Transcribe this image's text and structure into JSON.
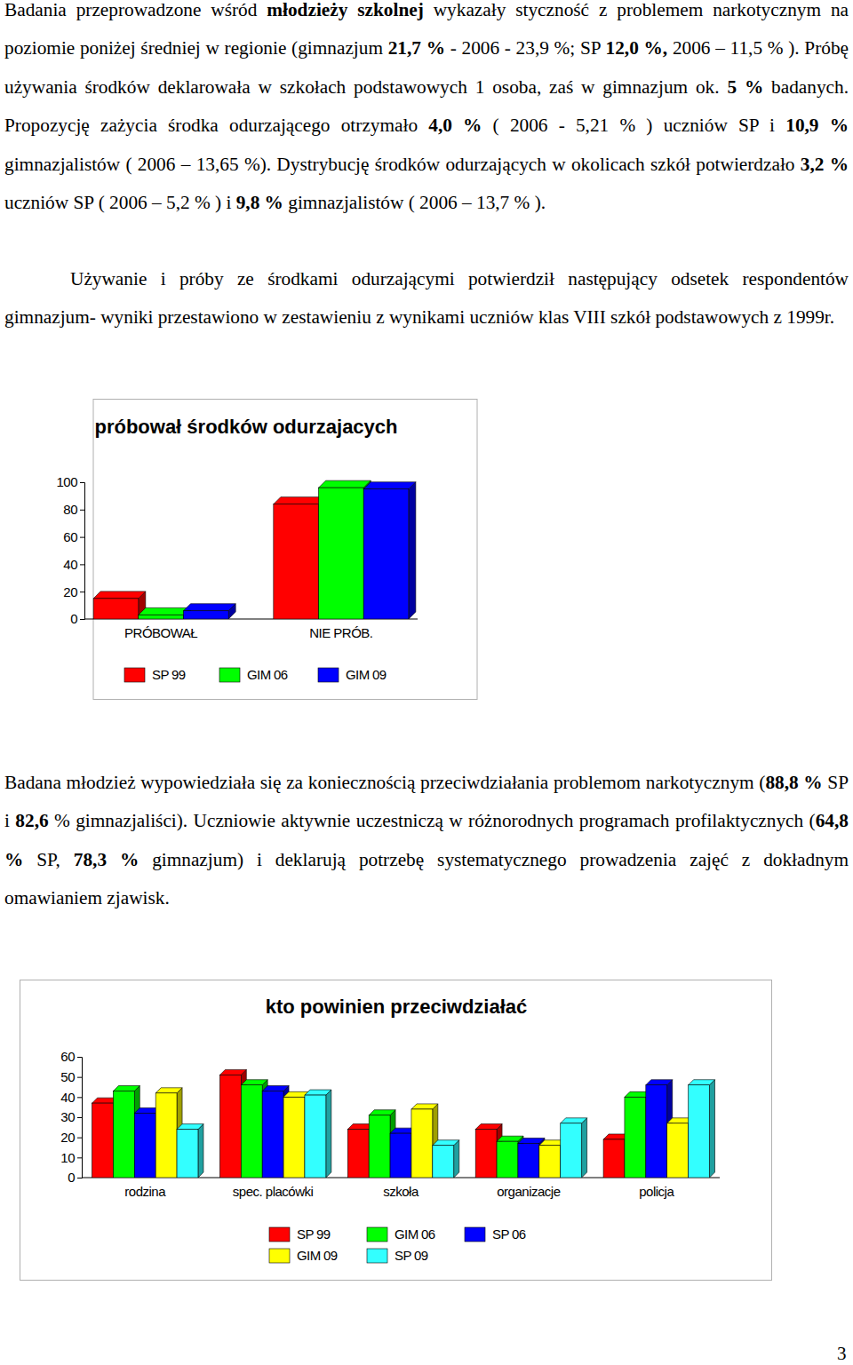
{
  "document": {
    "paragraphs": [
      {
        "runs": [
          {
            "text": "Badania przeprowadzone wśród "
          },
          {
            "text": "młodzieży szkolnej",
            "strong": true
          },
          {
            "text": " wykazały styczność z problemem narkotycznym na poziomie poniżej średniej w regionie (gimnazjum "
          },
          {
            "text": "21,7 %",
            "strong": true
          },
          {
            "text": " - 2006 - 23,9 %; SP "
          },
          {
            "text": "12,0 %,",
            "strong": true
          },
          {
            "text": " 2006 – 11,5 % ). Próbę używania środków deklarowała w szkołach podstawowych 1 osoba, zaś w gimnazjum ok. "
          },
          {
            "text": "5 %",
            "strong": true
          },
          {
            "text": " badanych. Propozycję zażycia środka odurzającego otrzymało "
          },
          {
            "text": "4,0 %",
            "strong": true
          },
          {
            "text": " ( 2006 - 5,21 % ) uczniów SP i "
          },
          {
            "text": "10,9 %",
            "strong": true
          },
          {
            "text": " gimnazjalistów ( 2006 – 13,65 %). Dystrybucję środków odurzających w okolicach szkół potwierdzało "
          },
          {
            "text": "3,2 %",
            "strong": true
          },
          {
            "text": " uczniów SP ( 2006 – 5,2 % ) i "
          },
          {
            "text": "9,8 %",
            "strong": true
          },
          {
            "text": " gimnazjalistów ( 2006 – 13,7 % )."
          }
        ]
      },
      {
        "runs": [
          {
            "text": "Używanie i próby ze środkami odurzającymi potwierdził następujący odsetek respondentów gimnazjum- wyniki przestawiono w zestawieniu z wynikami uczniów klas VIII szkół podstawowych z 1999r."
          }
        ]
      },
      {
        "runs": [
          {
            "text": "Badana młodzież wypowiedziała się za koniecznością przeciwdziałania problemom narkotycznym ("
          },
          {
            "text": "88,8 %",
            "strong": true
          },
          {
            "text": " SP i "
          },
          {
            "text": "82,6",
            "strong": true
          },
          {
            "text": " % gimnazjaliści). Uczniowie aktywnie uczestniczą w różnorodnych programach profilaktycznych ("
          },
          {
            "text": "64,8 %",
            "strong": true
          },
          {
            "text": " SP, "
          },
          {
            "text": "78,3 %",
            "strong": true
          },
          {
            "text": " gimnazjum) i deklarują potrzebę systematycznego prowadzenia zajęć z dokładnym omawianiem zjawisk."
          }
        ]
      }
    ],
    "page_number": "3"
  },
  "chart_data": [
    {
      "type": "bar",
      "title": "próbował środków odurzajacych",
      "categories": [
        "PRÓBOWAŁ",
        "NIE PRÓB."
      ],
      "series": [
        {
          "name": "SP 99",
          "color": "#ff0000",
          "values": [
            15,
            84
          ]
        },
        {
          "name": "GIM 06",
          "color": "#00ff00",
          "values": [
            3,
            96
          ]
        },
        {
          "name": "GIM 09",
          "color": "#0000ff",
          "values": [
            6,
            95
          ]
        }
      ],
      "ylim": [
        0,
        100
      ],
      "yticks": [
        0,
        20,
        40,
        60,
        80,
        100
      ],
      "grid": false,
      "legend": "bottom"
    },
    {
      "type": "bar",
      "title": "kto powinien przeciwdziałać",
      "categories": [
        "rodzina",
        "spec. placówki",
        "szkoła",
        "organizacje",
        "policja"
      ],
      "series": [
        {
          "name": "SP 99",
          "color": "#ff0000",
          "values": [
            37,
            51,
            24,
            24,
            19
          ]
        },
        {
          "name": "GIM 06",
          "color": "#00ff00",
          "values": [
            43,
            46,
            31,
            18,
            40
          ]
        },
        {
          "name": "SP 06",
          "color": "#0000ff",
          "values": [
            32,
            43,
            22,
            17,
            46
          ]
        },
        {
          "name": "GIM 09",
          "color": "#ffff00",
          "values": [
            42,
            40,
            34,
            16,
            27
          ]
        },
        {
          "name": "SP 09",
          "color": "#33ffff",
          "values": [
            24,
            41,
            16,
            27,
            46
          ]
        }
      ],
      "ylim": [
        0,
        60
      ],
      "yticks": [
        0,
        10,
        20,
        30,
        40,
        50,
        60
      ],
      "grid": false,
      "legend": "bottom"
    }
  ]
}
